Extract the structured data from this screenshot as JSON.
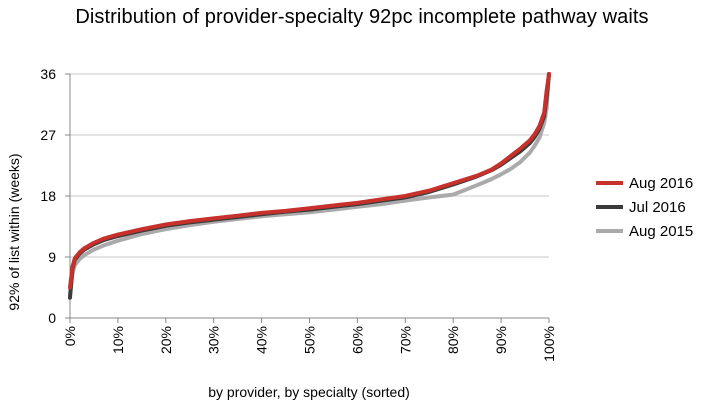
{
  "chart_data": {
    "type": "line",
    "title": "Distribution of provider-specialty 92pc incomplete pathway waits",
    "xlabel": "by provider, by specialty (sorted)",
    "ylabel": "92% of list within (weeks)",
    "xlim": [
      0,
      100
    ],
    "ylim": [
      0,
      36
    ],
    "x_ticks": [
      "0%",
      "10%",
      "20%",
      "30%",
      "40%",
      "50%",
      "60%",
      "70%",
      "80%",
      "90%",
      "100%"
    ],
    "y_ticks": [
      "0",
      "9",
      "18",
      "27",
      "36"
    ],
    "grid": "horizontal",
    "legend_position": "right",
    "x": [
      0,
      0.5,
      1,
      2,
      3,
      5,
      7,
      10,
      15,
      20,
      25,
      30,
      35,
      40,
      45,
      50,
      55,
      60,
      65,
      70,
      75,
      80,
      85,
      88,
      90,
      92,
      94,
      96,
      97,
      98,
      99,
      99.5,
      100
    ],
    "series": [
      {
        "name": "Aug 2015",
        "color": "#aaaaaa",
        "values": [
          3.5,
          6.5,
          7.8,
          8.7,
          9.3,
          10.1,
          10.7,
          11.4,
          12.4,
          13.1,
          13.7,
          14.2,
          14.6,
          15.0,
          15.3,
          15.6,
          16.0,
          16.4,
          16.8,
          17.3,
          17.8,
          18.2,
          19.6,
          20.5,
          21.2,
          22.0,
          23.0,
          24.4,
          25.4,
          26.6,
          28.8,
          31.0,
          36.0
        ]
      },
      {
        "name": "Jul 2016",
        "color": "#3b3b3b",
        "values": [
          3.0,
          7.2,
          8.6,
          9.5,
          10.1,
          10.9,
          11.5,
          12.1,
          12.9,
          13.6,
          14.1,
          14.5,
          14.9,
          15.3,
          15.7,
          16.0,
          16.4,
          16.8,
          17.3,
          17.8,
          18.6,
          19.7,
          20.9,
          21.8,
          22.6,
          23.6,
          24.6,
          25.8,
          26.7,
          27.9,
          29.8,
          32.5,
          36.0
        ]
      },
      {
        "name": "Aug 2016",
        "color": "#c8312b",
        "values": [
          4.5,
          7.5,
          8.8,
          9.7,
          10.3,
          11.1,
          11.7,
          12.3,
          13.1,
          13.8,
          14.3,
          14.7,
          15.1,
          15.5,
          15.8,
          16.2,
          16.6,
          17.0,
          17.5,
          18.0,
          18.8,
          19.9,
          21.0,
          21.9,
          22.8,
          23.9,
          25.0,
          26.2,
          27.1,
          28.3,
          30.3,
          33.5,
          36.0
        ]
      }
    ],
    "legend_order": [
      "Aug 2016",
      "Jul 2016",
      "Aug 2015"
    ]
  }
}
